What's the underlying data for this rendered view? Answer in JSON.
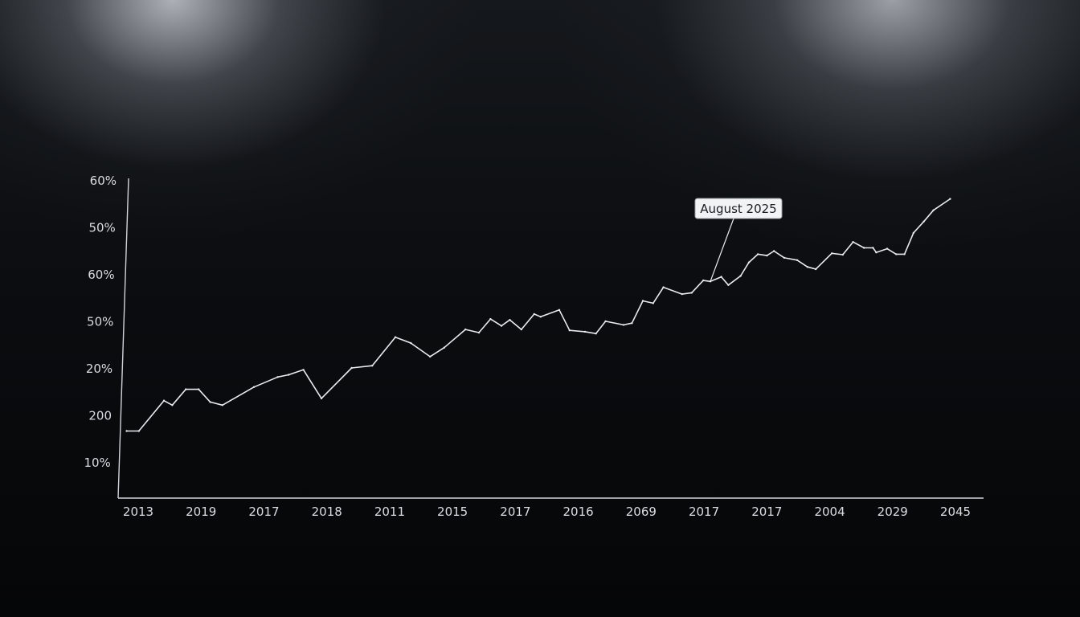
{
  "chart_data": {
    "type": "line",
    "title": "",
    "xlabel": "",
    "ylabel": "",
    "grid": false,
    "legend": "none",
    "y_tick_labels": [
      "60%",
      "50%",
      "60%",
      "50%",
      "20%",
      "200",
      "10%"
    ],
    "x_tick_labels": [
      "2013",
      "2019",
      "2017",
      "2018",
      "2011",
      "2015",
      "2017",
      "2016",
      "2069",
      "2017",
      "2017",
      "2004",
      "2029",
      "2045"
    ],
    "ylim": [
      0,
      7
    ],
    "xlim": [
      0,
      13.1
    ],
    "series": [
      {
        "color": "#e8ebee",
        "x": [
          -0.03,
          0.16,
          0.55,
          0.68,
          0.89,
          1.09,
          1.27,
          1.46,
          1.95,
          2.32,
          2.49,
          2.72,
          3.0,
          3.47,
          3.79,
          4.15,
          4.39,
          4.69,
          4.91,
          5.24,
          5.45,
          5.63,
          5.8,
          5.93,
          6.11,
          6.31,
          6.41,
          6.7,
          6.86,
          7.1,
          7.27,
          7.42,
          7.7,
          7.83,
          8.0,
          8.16,
          8.32,
          8.61,
          8.76,
          8.94,
          9.05,
          9.22,
          9.33,
          9.52,
          9.65,
          9.79,
          9.93,
          10.04,
          10.2,
          10.4,
          10.56,
          10.69,
          10.94,
          11.11,
          11.27,
          11.44,
          11.58,
          11.63,
          11.8,
          11.94,
          12.07,
          12.21,
          12.37,
          12.52,
          12.78
        ],
        "y": [
          1.48,
          1.48,
          2.15,
          2.05,
          2.4,
          2.4,
          2.12,
          2.05,
          2.45,
          2.67,
          2.72,
          2.83,
          2.2,
          2.87,
          2.92,
          3.55,
          3.42,
          3.12,
          3.32,
          3.72,
          3.65,
          3.95,
          3.8,
          3.93,
          3.72,
          4.06,
          4.0,
          4.15,
          3.7,
          3.67,
          3.63,
          3.9,
          3.82,
          3.86,
          4.35,
          4.3,
          4.65,
          4.5,
          4.53,
          4.8,
          4.78,
          4.88,
          4.7,
          4.9,
          5.2,
          5.38,
          5.35,
          5.45,
          5.3,
          5.25,
          5.1,
          5.05,
          5.4,
          5.37,
          5.65,
          5.52,
          5.52,
          5.42,
          5.5,
          5.38,
          5.38,
          5.85,
          6.1,
          6.35,
          6.6
        ]
      }
    ],
    "annotations": [
      {
        "text": "August 2025",
        "x": 9.05,
        "y": 4.78
      }
    ]
  }
}
